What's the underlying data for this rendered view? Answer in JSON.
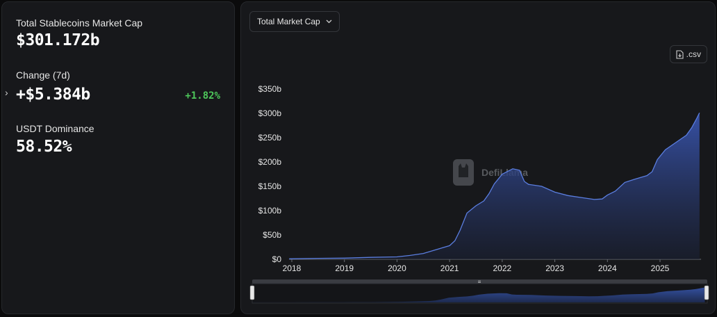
{
  "stats": {
    "market_cap": {
      "label": "Total Stablecoins Market Cap",
      "value": "$301.172b"
    },
    "change": {
      "label": "Change (7d)",
      "value": "+$5.384b",
      "percent": "+1.82%",
      "percent_color": "#4ec85b"
    },
    "dominance": {
      "label": "USDT Dominance",
      "value": "58.52%"
    }
  },
  "toolbar": {
    "metric_select": "Total Market Cap",
    "csv_label": ".csv"
  },
  "watermark": "DefiLlama",
  "colors": {
    "line": "#5b7ee0",
    "accent": "#4ec85b"
  },
  "chart_data": {
    "type": "area",
    "title": "",
    "xlabel": "",
    "ylabel": "",
    "ylim": [
      0,
      350
    ],
    "y_ticks": [
      "$0",
      "$50b",
      "$100b",
      "$150b",
      "$200b",
      "$250b",
      "$300b",
      "$350b"
    ],
    "x_ticks": [
      "2018",
      "2019",
      "2020",
      "2021",
      "2022",
      "2023",
      "2024",
      "2025"
    ],
    "series": [
      {
        "points": [
          [
            2017.95,
            1
          ],
          [
            2018.5,
            2
          ],
          [
            2019.0,
            2.5
          ],
          [
            2019.5,
            4
          ],
          [
            2020.0,
            5
          ],
          [
            2020.25,
            8
          ],
          [
            2020.5,
            12
          ],
          [
            2020.75,
            20
          ],
          [
            2021.0,
            28
          ],
          [
            2021.1,
            38
          ],
          [
            2021.2,
            60
          ],
          [
            2021.33,
            95
          ],
          [
            2021.5,
            110
          ],
          [
            2021.65,
            120
          ],
          [
            2021.75,
            135
          ],
          [
            2021.85,
            155
          ],
          [
            2022.0,
            175
          ],
          [
            2022.2,
            186
          ],
          [
            2022.33,
            183
          ],
          [
            2022.42,
            160
          ],
          [
            2022.5,
            154
          ],
          [
            2022.75,
            150
          ],
          [
            2023.0,
            138
          ],
          [
            2023.25,
            131
          ],
          [
            2023.5,
            127
          ],
          [
            2023.75,
            123
          ],
          [
            2023.9,
            124
          ],
          [
            2024.0,
            132
          ],
          [
            2024.15,
            140
          ],
          [
            2024.33,
            158
          ],
          [
            2024.5,
            164
          ],
          [
            2024.75,
            172
          ],
          [
            2024.85,
            180
          ],
          [
            2024.95,
            205
          ],
          [
            2025.1,
            225
          ],
          [
            2025.3,
            240
          ],
          [
            2025.5,
            255
          ],
          [
            2025.6,
            270
          ],
          [
            2025.7,
            290
          ],
          [
            2025.75,
            301
          ]
        ]
      }
    ]
  }
}
